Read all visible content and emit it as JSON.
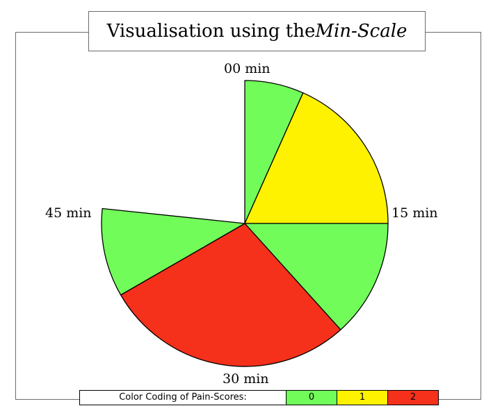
{
  "title": {
    "main": "Visualisation using the ",
    "emphasis": "Min-Scale"
  },
  "chart_data": {
    "type": "pie",
    "subtype": "polar-area clock (minutes, 0-60)",
    "angle_range": [
      0,
      60
    ],
    "angle_ticks": [
      {
        "minute": 0,
        "label": "00 min"
      },
      {
        "minute": 15,
        "label": "15 min"
      },
      {
        "minute": 30,
        "label": "30 min"
      },
      {
        "minute": 45,
        "label": "45 min"
      }
    ],
    "segments": [
      {
        "from_min": 0,
        "to_min": 4,
        "pain_score": 0,
        "relative_radius": 1.0
      },
      {
        "from_min": 4,
        "to_min": 15,
        "pain_score": 1,
        "relative_radius": 1.0
      },
      {
        "from_min": 15,
        "to_min": 23,
        "pain_score": 0,
        "relative_radius": 1.0
      },
      {
        "from_min": 23,
        "to_min": 40,
        "pain_score": 2,
        "relative_radius": 1.0
      },
      {
        "from_min": 40,
        "to_min": 46,
        "pain_score": 0,
        "relative_radius": 1.0
      }
    ]
  },
  "legend": {
    "caption": "Color Coding of Pain-Scores:",
    "items": [
      {
        "label": "0",
        "color": "#72fc5a"
      },
      {
        "label": "1",
        "color": "#fff200"
      },
      {
        "label": "2",
        "color": "#f5301b"
      }
    ]
  }
}
